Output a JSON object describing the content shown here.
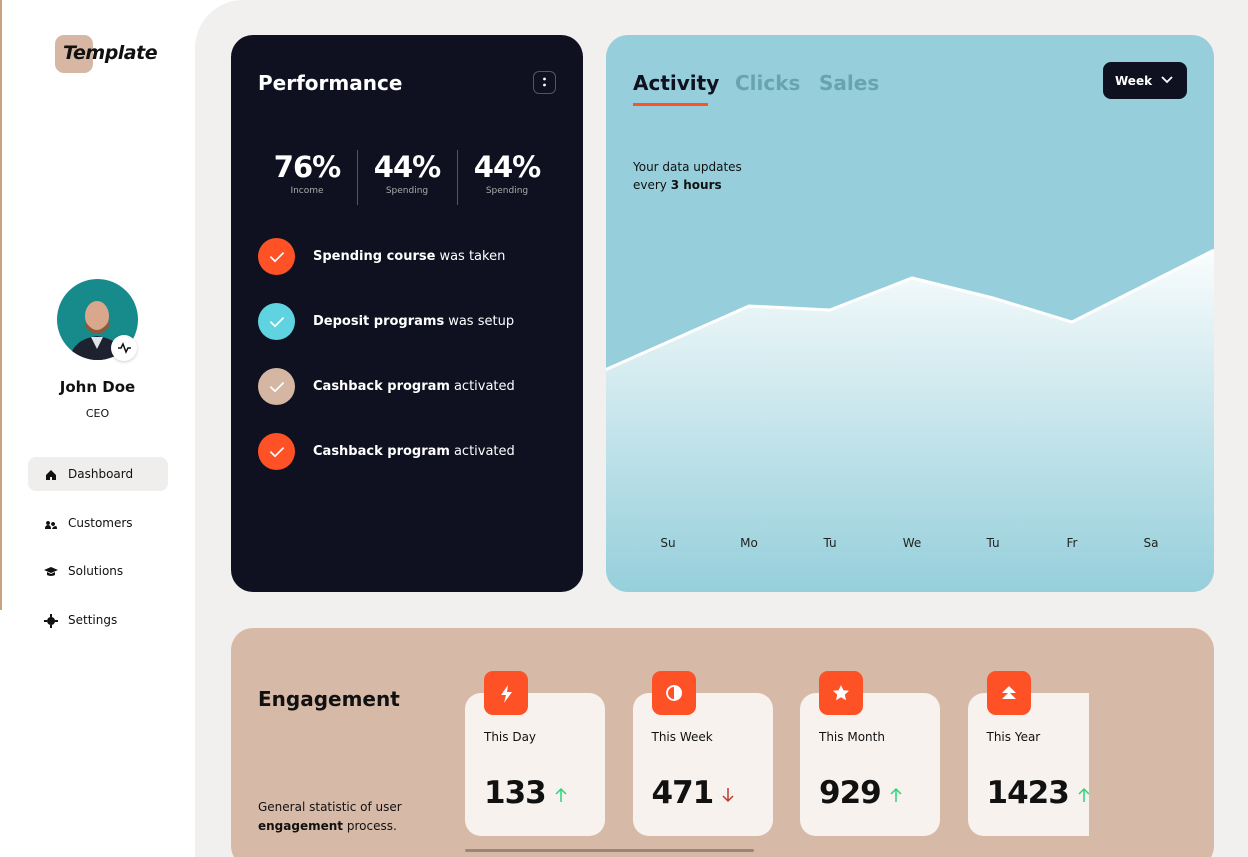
{
  "sidebar": {
    "logo": "Template",
    "profile": {
      "name": "John Doe",
      "role": "CEO"
    },
    "nav": [
      "Dashboard",
      "Customers",
      "Solutions",
      "Settings"
    ]
  },
  "performance": {
    "title": "Performance",
    "stats": [
      {
        "value": "76%",
        "label": "Income"
      },
      {
        "value": "44%",
        "label": "Spending"
      },
      {
        "value": "44%",
        "label": "Spending"
      }
    ],
    "tasks": [
      {
        "bold": "Spending course",
        "rest": "was taken",
        "color": "#ff5126"
      },
      {
        "bold": "Deposit programs",
        "rest": "was setup",
        "color": "#5fd3df"
      },
      {
        "bold": "Cashback program",
        "rest": "activated",
        "color": "#d5b6a2"
      },
      {
        "bold": "Cashback program",
        "rest": "activated",
        "color": "#ff5126"
      }
    ]
  },
  "activity": {
    "tabs": [
      "Activity",
      "Clicks",
      "Sales"
    ],
    "dropdown": "Week",
    "note": {
      "line1": "Your data updates",
      "prefix": "every",
      "bold": "3 hours"
    }
  },
  "chart_data": {
    "type": "area",
    "categories": [
      "Su",
      "Mo",
      "Tu",
      "We",
      "Tu",
      "Fr",
      "Sa"
    ],
    "values": [
      62,
      71,
      70,
      78,
      73,
      67,
      77
    ],
    "ylim": [
      0,
      100
    ],
    "color": "#ffffff"
  },
  "engagement": {
    "title": "Engagement",
    "description": {
      "line1": "General statistic of user",
      "bold": "engagement",
      "rest": "process."
    },
    "cards": [
      {
        "label": "This Day",
        "value": "133",
        "trend": "up"
      },
      {
        "label": "This Week",
        "value": "471",
        "trend": "down"
      },
      {
        "label": "This Month",
        "value": "929",
        "trend": "up"
      },
      {
        "label": "This Year",
        "value": "1423",
        "trend": "up"
      }
    ]
  }
}
